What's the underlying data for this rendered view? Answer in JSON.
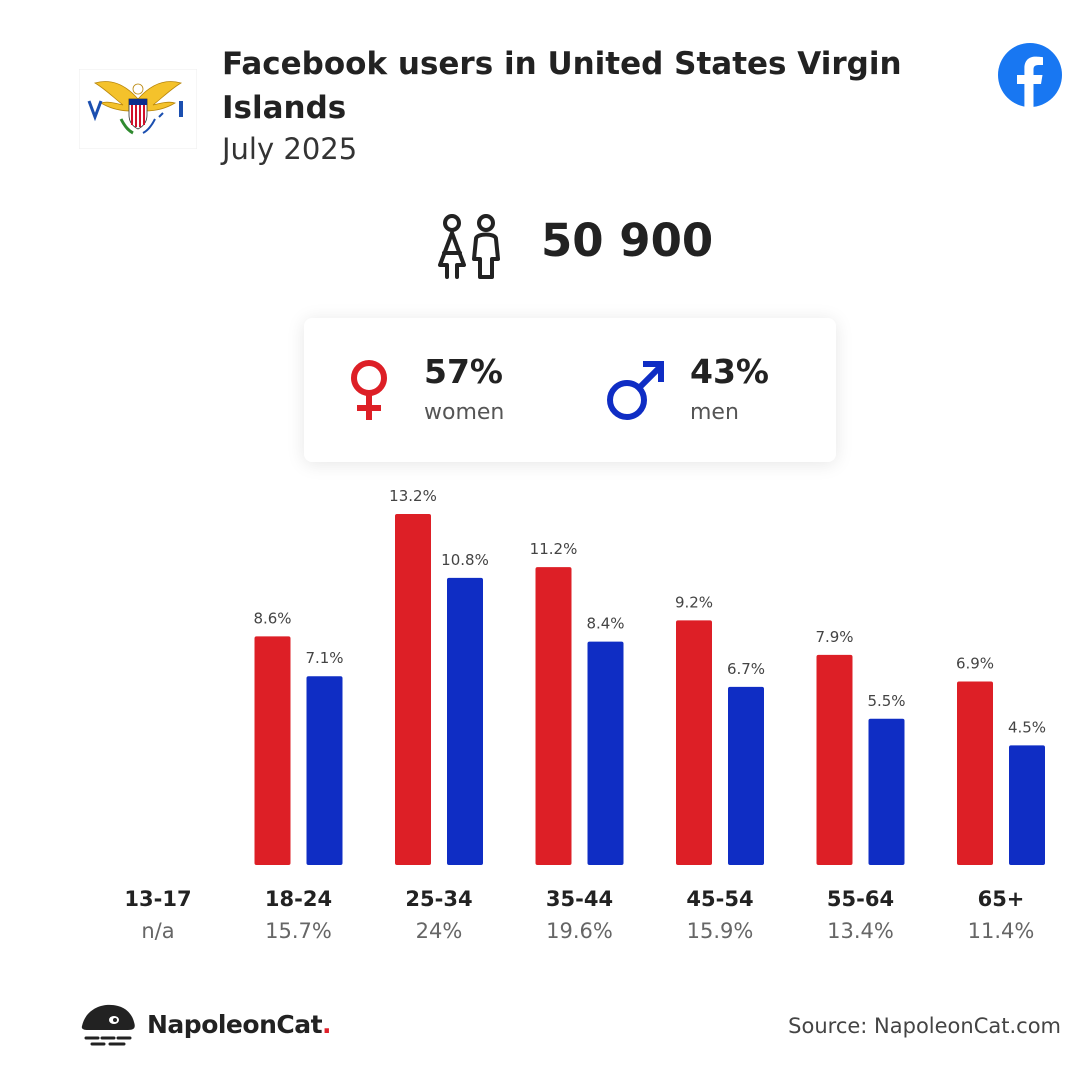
{
  "header": {
    "title": "Facebook users in United States Virgin Islands",
    "subtitle": "July 2025"
  },
  "total_users": "50 900",
  "gender": {
    "women_pct": "57%",
    "women_label": "women",
    "men_pct": "43%",
    "men_label": "men"
  },
  "colors": {
    "women": "#dd1f26",
    "men": "#0f2dc4",
    "facebook": "#1877f2"
  },
  "icons": [
    "flag-icon",
    "facebook-icon",
    "people-icon",
    "female-icon",
    "male-icon",
    "napoleoncat-logo-icon"
  ],
  "chart_data": {
    "type": "bar",
    "categories": [
      "13-17",
      "18-24",
      "25-34",
      "35-44",
      "45-54",
      "55-64",
      "65+"
    ],
    "category_totals": [
      "n/a",
      "15.7%",
      "24%",
      "19.6%",
      "15.9%",
      "13.4%",
      "11.4%"
    ],
    "series": [
      {
        "name": "women",
        "values": [
          null,
          8.6,
          13.2,
          11.2,
          9.2,
          7.9,
          6.9
        ],
        "labels": [
          "",
          "8.6%",
          "13.2%",
          "11.2%",
          "9.2%",
          "7.9%",
          "6.9%"
        ]
      },
      {
        "name": "men",
        "values": [
          null,
          7.1,
          10.8,
          8.4,
          6.7,
          5.5,
          4.5
        ],
        "labels": [
          "",
          "7.1%",
          "10.8%",
          "8.4%",
          "6.7%",
          "5.5%",
          "4.5%"
        ]
      }
    ],
    "ylim": [
      0,
      13.2
    ],
    "title": "",
    "xlabel": "",
    "ylabel": "",
    "grid": false
  },
  "footer": {
    "brand_name": "NapoleonCat",
    "brand_dot": ".",
    "source": "Source: NapoleonCat.com"
  }
}
